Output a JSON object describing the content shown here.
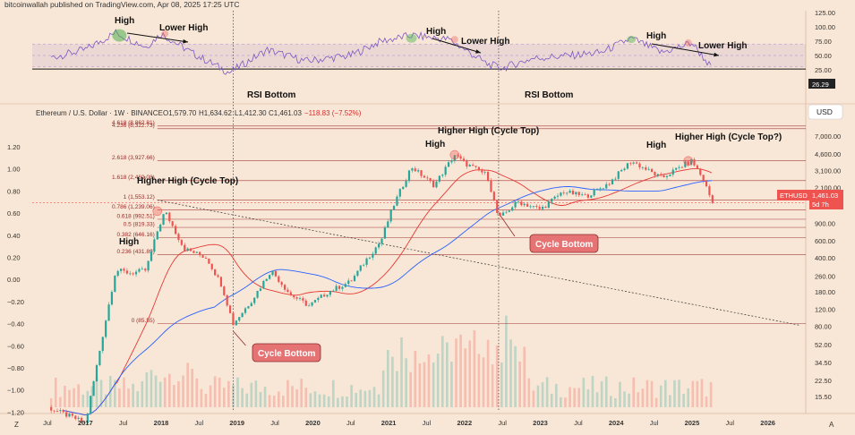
{
  "header": {
    "publisher": "bitcoinwallah published on TradingView.com, Apr 08, 2025 17:25 UTC"
  },
  "symbol_info": {
    "pair": "Ethereum / U.S. Dollar · 1W · BINANCE",
    "open": "O1,579.70",
    "high": "H1,634.62",
    "low": "L1,412.30",
    "close": "C1,461.03",
    "change": "−118.83 (−7.52%)"
  },
  "currency": "USD",
  "last_price": {
    "ticker": "ETHUSD",
    "price": "1,461.03",
    "countdown": "5d 7h"
  },
  "rsi_last": "26.29",
  "colors": {
    "bg": "#f8e7d6",
    "up": "#26a69a",
    "down": "#ef5350",
    "ma_long": "#2962ff",
    "ma_short": "#e53935",
    "fib": "#9c2a2a",
    "callout": "#e57373",
    "rsi": "#7e57c2"
  },
  "left_axis": [
    "1.20",
    "1.00",
    "0.80",
    "0.60",
    "0.40",
    "0.20",
    "0.00",
    "−0.20",
    "−0.40",
    "−0.60",
    "−0.80",
    "−1.00",
    "−1.20"
  ],
  "right_axis": [
    "7,000.00",
    "4,600.00",
    "3,100.00",
    "2,100.00",
    "1,400.00",
    "900.00",
    "600.00",
    "400.00",
    "260.00",
    "180.00",
    "120.00",
    "80.00",
    "52.00",
    "34.50",
    "22.50",
    "15.50"
  ],
  "rsi_axis": [
    "125.00",
    "100.00",
    "75.00",
    "50.00",
    "25.00"
  ],
  "time_axis": [
    "Jul",
    "2017",
    "Jul",
    "2018",
    "Jul",
    "2019",
    "Jul",
    "2020",
    "Jul",
    "2021",
    "Jul",
    "2022",
    "Jul",
    "2023",
    "Jul",
    "2024",
    "Jul",
    "2025",
    "Jul",
    "2026"
  ],
  "fib_levels": [
    {
      "label": "4.618 (8,862.81)",
      "price": 8862.81
    },
    {
      "label": "4.236 (8,322.73)",
      "price": 8322.73
    },
    {
      "label": "2.618 (3,927.66)",
      "price": 3927.66
    },
    {
      "label": "1.618 (2,460.08)",
      "price": 2460.08
    },
    {
      "label": "1 (1,553.12)",
      "price": 1553.12
    },
    {
      "label": "0.786 (1,239.06)",
      "price": 1239.06
    },
    {
      "label": "0.618 (992.51)",
      "price": 992.51
    },
    {
      "label": "0.5 (819.33)",
      "price": 819.33
    },
    {
      "label": "0.382 (646.16)",
      "price": 646.16
    },
    {
      "label": "0.236 (431.89)",
      "price": 431.89
    },
    {
      "label": "0 (85.55)",
      "price": 85.55
    }
  ],
  "annotations": {
    "rsi_high_1": "High",
    "rsi_lower_high_1": "Lower High",
    "rsi_high_2": "High",
    "rsi_lower_high_2": "Lower High",
    "rsi_high_3": "High",
    "rsi_lower_high_3": "Lower High",
    "rsi_bottom_1": "RSI Bottom",
    "rsi_bottom_2": "RSI Bottom",
    "high_2017": "High",
    "higher_high_2018": "Higher High (Cycle Top)",
    "high_2021": "High",
    "higher_high_2021": "Higher High (Cycle Top)",
    "high_2024": "High",
    "higher_high_2024": "Higher High (Cycle Top?)",
    "cycle_bottom_1": "Cycle Bottom",
    "cycle_bottom_2": "Cycle Bottom",
    "footer_left": "Z",
    "footer_right": "A"
  },
  "chart_data": {
    "type": "line",
    "title": "Ethereum / U.S. Dollar · 1W · BINANCE",
    "y_scale": "log",
    "ylim": [
      12,
      10000
    ],
    "xlim": [
      2016.3,
      2026.5
    ],
    "x": [
      2016.5,
      2016.9,
      2017.0,
      2017.2,
      2017.4,
      2017.6,
      2017.8,
      2017.95,
      2018.05,
      2018.3,
      2018.6,
      2018.8,
      2018.95,
      2019.2,
      2019.45,
      2019.7,
      2019.95,
      2020.2,
      2020.5,
      2020.7,
      2020.9,
      2021.05,
      2021.3,
      2021.6,
      2021.87,
      2022.0,
      2022.3,
      2022.45,
      2022.7,
      2023.0,
      2023.3,
      2023.6,
      2023.9,
      2024.2,
      2024.6,
      2024.9,
      2025.0,
      2025.15,
      2025.27
    ],
    "series": [
      {
        "name": "Price",
        "values": [
          12,
          9,
          8,
          50,
          300,
          280,
          300,
          750,
          1200,
          500,
          400,
          210,
          85,
          150,
          300,
          170,
          130,
          180,
          230,
          380,
          600,
          1300,
          3400,
          2200,
          4500,
          3700,
          2800,
          1000,
          1500,
          1250,
          1900,
          1700,
          2300,
          3900,
          2600,
          3600,
          3900,
          2500,
          1461
        ]
      }
    ],
    "rsi": {
      "name": "RSI",
      "ylim": [
        0,
        125
      ],
      "x": [
        2016.5,
        2017.0,
        2017.4,
        2017.8,
        2018.0,
        2018.4,
        2018.9,
        2019.4,
        2019.9,
        2020.5,
        2020.9,
        2021.3,
        2021.8,
        2022.3,
        2022.5,
        2022.9,
        2023.4,
        2023.8,
        2024.2,
        2024.6,
        2025.0,
        2025.27
      ],
      "values": [
        45,
        60,
        90,
        65,
        88,
        55,
        20,
        60,
        40,
        50,
        75,
        85,
        78,
        35,
        28,
        45,
        50,
        55,
        80,
        55,
        72,
        26.29
      ]
    }
  }
}
